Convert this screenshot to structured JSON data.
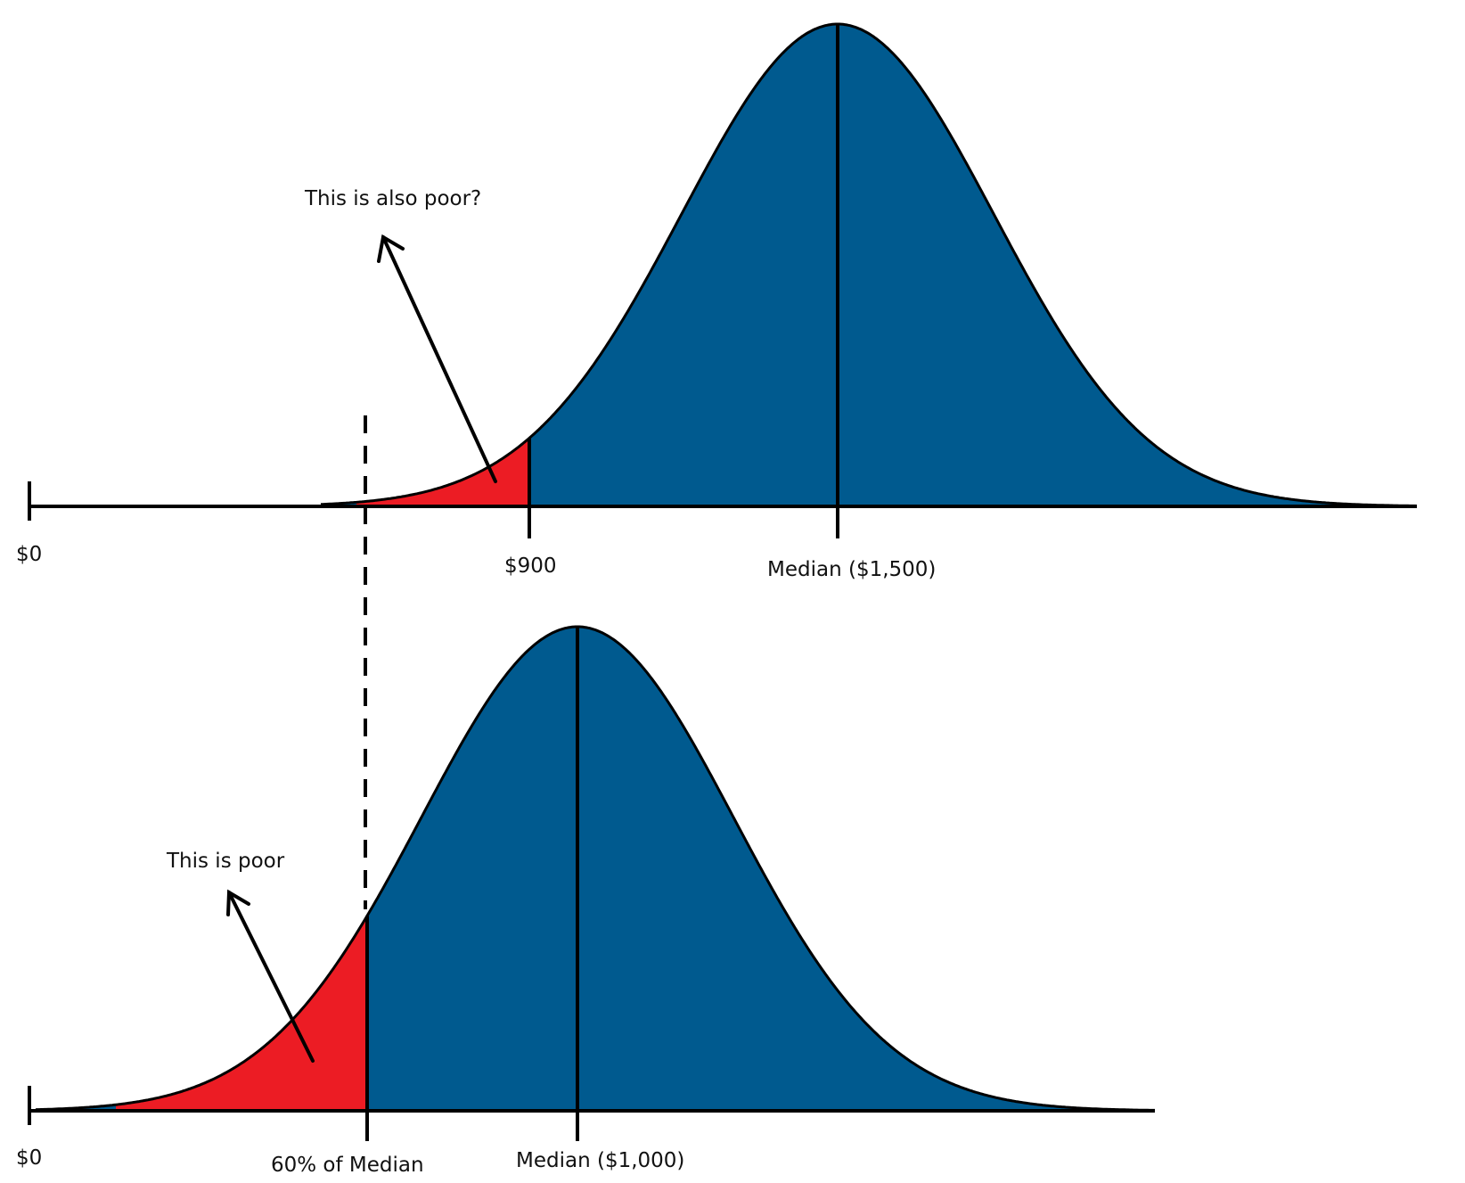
{
  "colors": {
    "curve_fill": "#005a8f",
    "poor_fill": "#ec1c24",
    "stroke": "#000000",
    "background": "#ffffff"
  },
  "top": {
    "zero_label": "$0",
    "threshold_label": "$900",
    "median_label": "Median ($1,500)",
    "annotation": "This is also poor?"
  },
  "bottom": {
    "zero_label": "$0",
    "threshold_label": "60% of Median",
    "median_label": "Median ($1,000)",
    "annotation": "This is poor"
  }
}
